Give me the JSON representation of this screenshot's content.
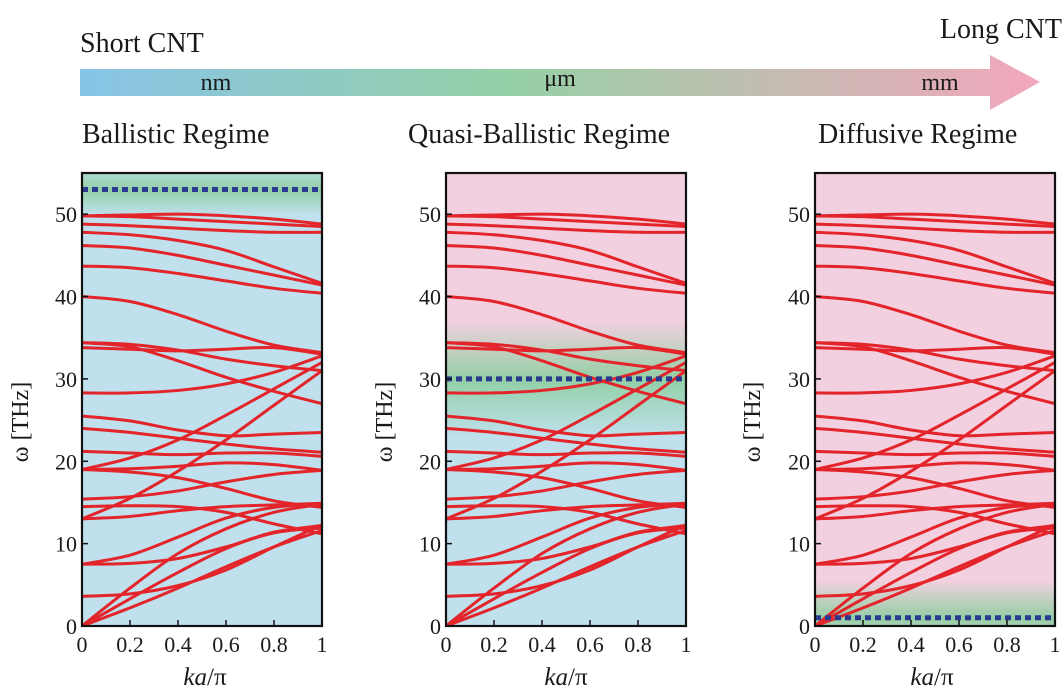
{
  "header": {
    "left_label": "Short CNT",
    "right_label": "Long CNT",
    "scale_labels": [
      "nm",
      "μm",
      "mm"
    ],
    "arrow_colors": [
      "#88c4e8",
      "#96d0a6",
      "#f2a7bc"
    ]
  },
  "colors": {
    "band": "#e3252b",
    "marker": "#2a3a8f",
    "blue_region": "#bfe0ec",
    "green_region": "#8fcfa2",
    "pink_region": "#f2d0df"
  },
  "chart_data": [
    {
      "type": "line",
      "title": "Ballistic Regime",
      "xlabel_italic": "ka",
      "xlabel_rest": "/π",
      "ylabel": "ω [THz]",
      "xlim": [
        0,
        1
      ],
      "ylim": [
        0,
        55
      ],
      "xticks": [
        "0",
        "0.2",
        "0.4",
        "0.6",
        "0.8",
        "1"
      ],
      "yticks": [
        "0",
        "10",
        "20",
        "30",
        "40",
        "50"
      ],
      "background": {
        "base": "blue",
        "band_color": "green",
        "band_center": 53,
        "band_halfwidth": 3
      },
      "marker_level": 53
    },
    {
      "type": "line",
      "title": "Quasi-Ballistic Regime",
      "xlabel_italic": "ka",
      "xlabel_rest": "/π",
      "ylabel": "ω [THz]",
      "xlim": [
        0,
        1
      ],
      "ylim": [
        0,
        55
      ],
      "xticks": [
        "0",
        "0.2",
        "0.4",
        "0.6",
        "0.8",
        "1"
      ],
      "yticks": [
        "0",
        "10",
        "20",
        "30",
        "40",
        "50"
      ],
      "background": {
        "base": "split",
        "lower": "blue",
        "upper": "pink",
        "split_at": 30,
        "band_color": "green",
        "band_center": 30,
        "band_halfwidth": 7
      },
      "marker_level": 30
    },
    {
      "type": "line",
      "title": "Diffusive Regime",
      "xlabel_italic": "ka",
      "xlabel_rest": "/π",
      "ylabel": "ω [THz]",
      "xlim": [
        0,
        1
      ],
      "ylim": [
        0,
        55
      ],
      "xticks": [
        "0",
        "0.2",
        "0.4",
        "0.6",
        "0.8",
        "1"
      ],
      "yticks": [
        "0",
        "10",
        "20",
        "30",
        "40",
        "50"
      ],
      "background": {
        "base": "pink",
        "band_color": "green",
        "band_center": 1,
        "band_halfwidth": 4.5
      },
      "marker_level": 1
    }
  ],
  "dispersion": {
    "x": [
      0,
      0.2,
      0.4,
      0.6,
      0.8,
      1.0
    ],
    "branches": [
      [
        0,
        2.2,
        4.6,
        7.2,
        9.6,
        11.6
      ],
      [
        0,
        3.3,
        6.5,
        9.4,
        11.3,
        11.9
      ],
      [
        0,
        4.6,
        8.8,
        11.8,
        13.8,
        14.8
      ],
      [
        3.6,
        3.9,
        4.9,
        6.8,
        9.6,
        12.3
      ],
      [
        7.5,
        7.6,
        8.2,
        9.6,
        11.4,
        12.2
      ],
      [
        7.5,
        8.6,
        10.8,
        13.1,
        14.4,
        14.8
      ],
      [
        13.0,
        13.3,
        14.0,
        14.5,
        14.7,
        14.9
      ],
      [
        14.5,
        14.6,
        14.5,
        13.8,
        12.4,
        11.2
      ],
      [
        15.4,
        15.7,
        16.4,
        17.5,
        18.4,
        18.9
      ],
      [
        19.0,
        19.1,
        19.4,
        19.8,
        19.6,
        18.9
      ],
      [
        19.0,
        18.7,
        18.0,
        16.7,
        15.2,
        14.4
      ],
      [
        21.2,
        21.0,
        20.8,
        21.0,
        21.0,
        20.6
      ],
      [
        24.0,
        23.5,
        22.8,
        22.1,
        21.5,
        21.1
      ],
      [
        25.5,
        24.9,
        23.8,
        23.1,
        23.3,
        23.5
      ],
      [
        19.0,
        20.4,
        22.6,
        25.6,
        28.8,
        32.0
      ],
      [
        13.0,
        15.5,
        18.8,
        22.6,
        26.8,
        31.0
      ],
      [
        28.3,
        28.3,
        28.6,
        29.4,
        30.8,
        32.8
      ],
      [
        34.4,
        34.2,
        33.5,
        32.4,
        31.6,
        31.0
      ],
      [
        34.4,
        33.9,
        32.2,
        30.2,
        28.5,
        27.0
      ],
      [
        33.8,
        33.6,
        33.4,
        33.6,
        33.8,
        33.0
      ],
      [
        40.0,
        39.4,
        37.8,
        35.8,
        34.1,
        33.2
      ],
      [
        43.7,
        43.5,
        42.8,
        41.9,
        41.0,
        40.4
      ],
      [
        46.2,
        45.9,
        45.0,
        43.8,
        42.6,
        41.4
      ],
      [
        47.8,
        47.5,
        46.8,
        45.6,
        43.6,
        41.6
      ],
      [
        48.8,
        48.6,
        48.3,
        48.0,
        47.8,
        47.8
      ],
      [
        49.8,
        49.7,
        49.4,
        49.1,
        48.8,
        48.5
      ],
      [
        49.8,
        49.9,
        50.0,
        49.8,
        49.4,
        48.8
      ]
    ]
  }
}
